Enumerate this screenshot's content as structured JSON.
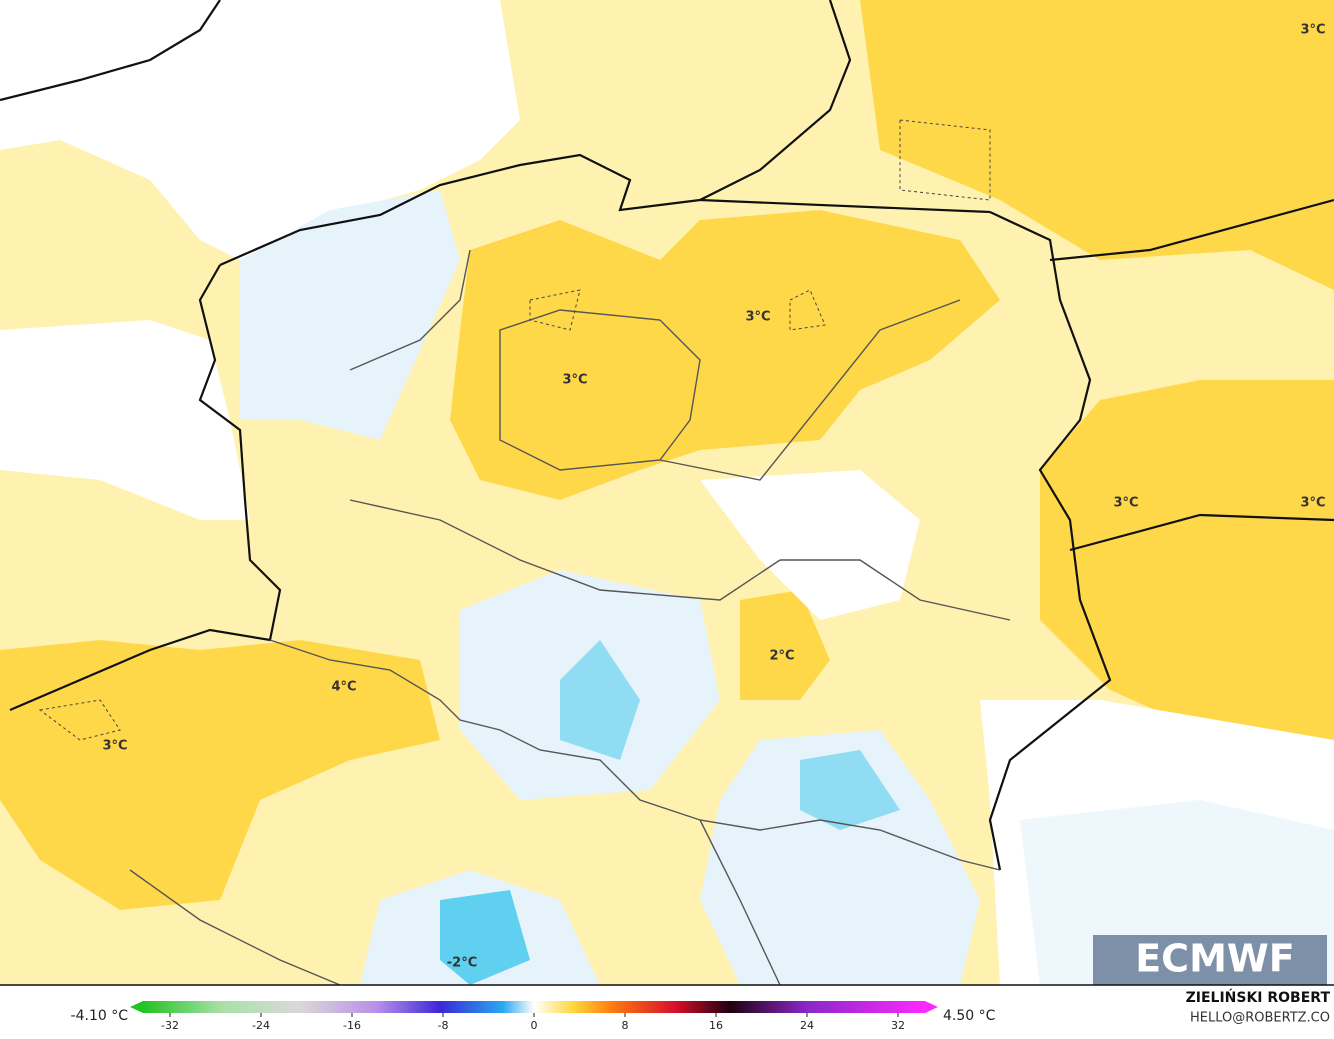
{
  "map": {
    "contour_labels": [
      "3°C",
      "3°C",
      "3°C",
      "3°C",
      "3°C",
      "2°C",
      "4°C",
      "3°C",
      "-2°C"
    ],
    "logo": "ECMWF",
    "min_label": "-4.10 °C",
    "max_label": "4.50 °C",
    "colorbar_ticks": [
      -32,
      -24,
      -16,
      -8,
      0,
      8,
      16,
      24,
      32
    ],
    "author": "ZIELIŃSKI ROBERT",
    "contact": "HELLO@ROBERTZ.CO"
  }
}
